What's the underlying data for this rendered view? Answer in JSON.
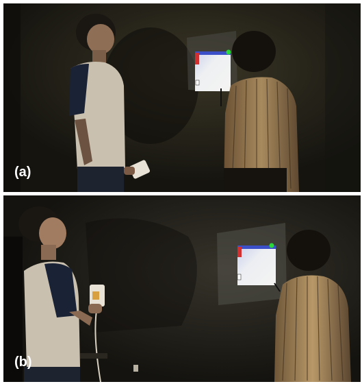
{
  "panels": [
    {
      "id": "a",
      "label": "(a)"
    },
    {
      "id": "b",
      "label": "(b)"
    }
  ],
  "colors": {
    "wall": "#1c1b15",
    "projection": "#e4e8ee",
    "projection_blue": "#3a4fc8",
    "projection_red": "#d23030",
    "marker_green": "#2bd83a",
    "shirt_white": "#c9c0b0",
    "shirt_navy": "#1a2236",
    "striped_shirt": "#8a6d48"
  }
}
